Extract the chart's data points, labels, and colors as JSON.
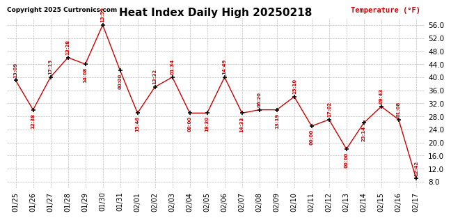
{
  "title": "Heat Index Daily High 20250218",
  "copyright": "Copyright 2025 Curtronics.com",
  "ylabel": "Temperature (°F)",
  "background_color": "#ffffff",
  "grid_color": "#bbbbbb",
  "line_color": "#cc0000",
  "text_color_red": "#cc0000",
  "text_color_black": "#000000",
  "ylim": [
    6.0,
    58.0
  ],
  "yticks": [
    8.0,
    12.0,
    16.0,
    20.0,
    24.0,
    28.0,
    32.0,
    36.0,
    40.0,
    44.0,
    48.0,
    52.0,
    56.0
  ],
  "dates": [
    "01/25",
    "01/26",
    "01/27",
    "01/28",
    "01/29",
    "01/30",
    "01/31",
    "02/01",
    "02/02",
    "02/03",
    "02/04",
    "02/05",
    "02/06",
    "02/07",
    "02/08",
    "02/09",
    "02/10",
    "02/11",
    "02/12",
    "02/13",
    "02/14",
    "02/15",
    "02/16",
    "02/17"
  ],
  "values": [
    39.0,
    30.0,
    40.0,
    46.0,
    44.0,
    56.0,
    42.0,
    29.0,
    37.0,
    40.0,
    29.0,
    29.0,
    40.0,
    29.0,
    30.0,
    30.0,
    34.0,
    25.0,
    27.0,
    18.0,
    26.0,
    31.0,
    27.0,
    9.0
  ],
  "labels": [
    "13:09",
    "12:38",
    "17:13",
    "13:28",
    "14:08",
    "13:59",
    "00:00",
    "15:46",
    "13:32",
    "01:34",
    "00:00",
    "19:30",
    "14:49",
    "14:33",
    "06:20",
    "13:19",
    "15:10",
    "00:00",
    "17:02",
    "00:00",
    "23:14",
    "09:43",
    "01:08",
    "12:42"
  ],
  "label_above": [
    true,
    false,
    true,
    true,
    false,
    true,
    false,
    false,
    true,
    true,
    false,
    false,
    true,
    false,
    true,
    false,
    true,
    false,
    true,
    false,
    false,
    true,
    true,
    true
  ]
}
